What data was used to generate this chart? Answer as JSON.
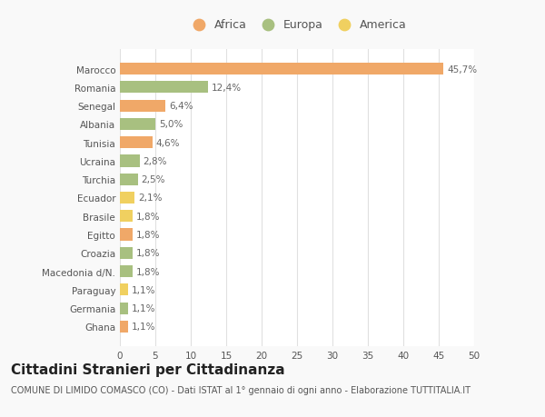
{
  "categories": [
    "Ghana",
    "Germania",
    "Paraguay",
    "Macedonia d/N.",
    "Croazia",
    "Egitto",
    "Brasile",
    "Ecuador",
    "Turchia",
    "Ucraina",
    "Tunisia",
    "Albania",
    "Senegal",
    "Romania",
    "Marocco"
  ],
  "values": [
    1.1,
    1.1,
    1.1,
    1.8,
    1.8,
    1.8,
    1.8,
    2.1,
    2.5,
    2.8,
    4.6,
    5.0,
    6.4,
    12.4,
    45.7
  ],
  "labels": [
    "1,1%",
    "1,1%",
    "1,1%",
    "1,8%",
    "1,8%",
    "1,8%",
    "1,8%",
    "2,1%",
    "2,5%",
    "2,8%",
    "4,6%",
    "5,0%",
    "6,4%",
    "12,4%",
    "45,7%"
  ],
  "colors": [
    "#f0a868",
    "#a8c080",
    "#f0d060",
    "#a8c080",
    "#a8c080",
    "#f0a868",
    "#f0d060",
    "#f0d060",
    "#a8c080",
    "#a8c080",
    "#f0a868",
    "#a8c080",
    "#f0a868",
    "#a8c080",
    "#f0a868"
  ],
  "legend": [
    {
      "label": "Africa",
      "color": "#f0a868"
    },
    {
      "label": "Europa",
      "color": "#a8c080"
    },
    {
      "label": "America",
      "color": "#f0d060"
    }
  ],
  "title": "Cittadini Stranieri per Cittadinanza",
  "subtitle": "COMUNE DI LIMIDO COMASCO (CO) - Dati ISTAT al 1° gennaio di ogni anno - Elaborazione TUTTITALIA.IT",
  "xlim": [
    0,
    50
  ],
  "xticks": [
    0,
    5,
    10,
    15,
    20,
    25,
    30,
    35,
    40,
    45,
    50
  ],
  "background_color": "#f9f9f9",
  "plot_bg_color": "#ffffff",
  "grid_color": "#e0e0e0",
  "bar_height": 0.65,
  "title_fontsize": 11,
  "subtitle_fontsize": 7,
  "label_fontsize": 7.5,
  "tick_fontsize": 7.5,
  "legend_fontsize": 9
}
